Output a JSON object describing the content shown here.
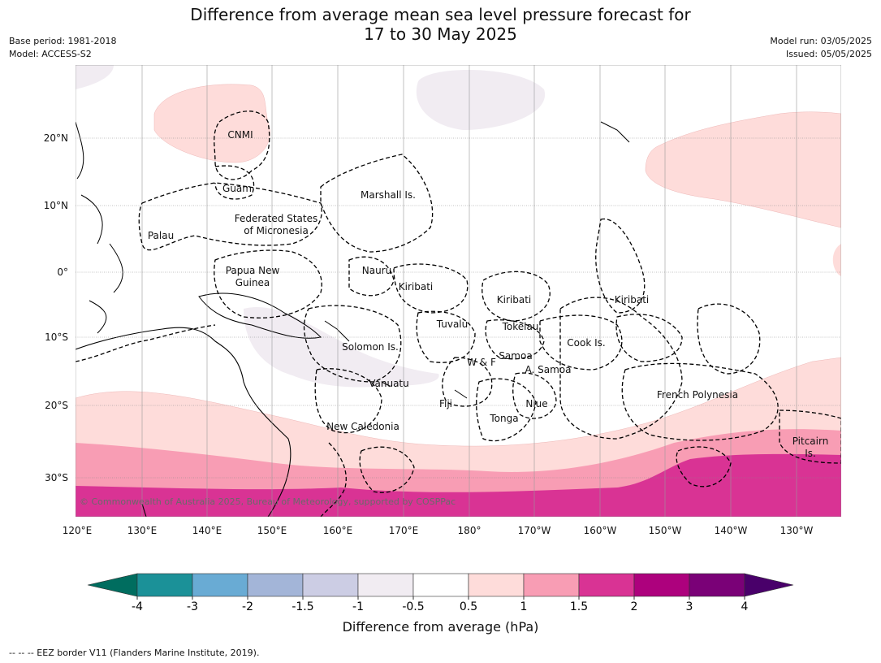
{
  "title_line1": "Difference from average mean sea level pressure forecast for",
  "title_line2": "17 to 30 May 2025",
  "meta_left": {
    "base_period": "Base period: 1981-2018",
    "model": "Model: ACCESS-S2"
  },
  "meta_right": {
    "model_run": "Model run: 03/05/2025",
    "issued": "Issued: 05/05/2025"
  },
  "copyright": "© Commonwealth of Australia 2025, Bureau of Meteorology, supported by COSPPac",
  "lon_labels": [
    "120°E",
    "130°E",
    "140°E",
    "150°E",
    "160°E",
    "170°E",
    "180°",
    "170°W",
    "160°W",
    "150°W",
    "140°W",
    "130°W"
  ],
  "lat_labels": [
    "20°N",
    "10°N",
    "0°",
    "10°S",
    "20°S",
    "30°S"
  ],
  "countries": [
    "CNMI",
    "Guam",
    "Marshall Is.",
    "Federated States",
    "of Micronesia",
    "Palau",
    "Papua New",
    "Guinea",
    "Nauru",
    "Kiribati",
    "Kiribati",
    "Kiribati",
    "Tuvalu",
    "Tokelau",
    "Solomon Is.",
    "Samoa",
    "W & F",
    "A. Samoa",
    "Cook Is.",
    "Vanuatu",
    "Fiji",
    "Niue",
    "Tonga",
    "New Caledonia",
    "French Polynesia",
    "Pitcairn",
    "Is."
  ],
  "colorbar": {
    "title": "Difference from average (hPa)",
    "ticks": [
      "-4",
      "-3",
      "-2",
      "-1.5",
      "-1",
      "-0.5",
      "0.5",
      "1",
      "1.5",
      "2",
      "3",
      "4"
    ],
    "colors": [
      "#1b9198",
      "#69abd4",
      "#a3b5d8",
      "#cccde4",
      "#f1ecf2",
      "#ffffff",
      "#fedcda",
      "#f89db4",
      "#d93394",
      "#ad017d",
      "#7a0177"
    ],
    "under_color": "#006d5f",
    "over_color": "#49006a"
  },
  "footnote": "--  --  -- EEZ border V11 (Flanders Marine Institute, 2019)."
}
